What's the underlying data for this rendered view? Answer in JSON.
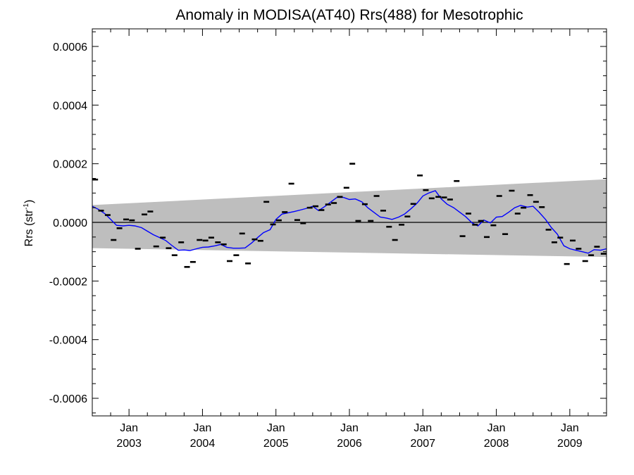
{
  "chart_data": {
    "type": "line",
    "title": "Anomaly in MODISA(AT40) Rrs(488) for Mesotrophic",
    "ylabel": {
      "base": "Rrs (str",
      "sup": "-1",
      "close": ")"
    },
    "xlabel": "",
    "ylim": [
      -0.00066,
      0.00066
    ],
    "xlim": [
      2002.5,
      2009.5
    ],
    "yticks": [
      {
        "value": 0.0006,
        "label": "0.0006"
      },
      {
        "value": 0.0004,
        "label": "0.0004"
      },
      {
        "value": 0.0002,
        "label": "0.0002"
      },
      {
        "value": 0.0,
        "label": "0.0000"
      },
      {
        "value": -0.0002,
        "label": "-0.0002"
      },
      {
        "value": -0.0004,
        "label": "-0.0004"
      },
      {
        "value": -0.0006,
        "label": "-0.0006"
      }
    ],
    "xticks": [
      {
        "value": 2003.0,
        "label": "Jan",
        "year": "2003"
      },
      {
        "value": 2004.0,
        "label": "Jan",
        "year": "2004"
      },
      {
        "value": 2005.0,
        "label": "Jan",
        "year": "2005"
      },
      {
        "value": 2006.0,
        "label": "Jan",
        "year": "2006"
      },
      {
        "value": 2007.0,
        "label": "Jan",
        "year": "2007"
      },
      {
        "value": 2008.0,
        "label": "Jan",
        "year": "2008"
      },
      {
        "value": 2009.0,
        "label": "Jan",
        "year": "2009"
      }
    ],
    "band": {
      "color": "#bebebe",
      "upper": [
        [
          2002.5,
          5.9e-05
        ],
        [
          2009.5,
          0.000147
        ]
      ],
      "lower": [
        [
          2002.5,
          -8.8e-05
        ],
        [
          2009.5,
          -0.000118
        ]
      ]
    },
    "zero_line_color": "#000000",
    "series": [
      {
        "style": "dash-markers",
        "color": "#000000",
        "points": [
          [
            2002.54,
            0.000146
          ],
          [
            2002.62,
            4e-05
          ],
          [
            2002.71,
            2.5e-05
          ],
          [
            2002.79,
            -6e-05
          ],
          [
            2002.87,
            -2e-05
          ],
          [
            2002.96,
            1e-05
          ],
          [
            2003.04,
            7e-06
          ],
          [
            2003.12,
            -9e-05
          ],
          [
            2003.21,
            2.7e-05
          ],
          [
            2003.29,
            3.7e-05
          ],
          [
            2003.37,
            -8.2e-05
          ],
          [
            2003.46,
            -5.2e-05
          ],
          [
            2003.54,
            -8.8e-05
          ],
          [
            2003.62,
            -0.000112
          ],
          [
            2003.71,
            -6.8e-05
          ],
          [
            2003.79,
            -0.000152
          ],
          [
            2003.87,
            -0.000135
          ],
          [
            2003.96,
            -6e-05
          ],
          [
            2004.04,
            -6.2e-05
          ],
          [
            2004.12,
            -5.2e-05
          ],
          [
            2004.21,
            -6.8e-05
          ],
          [
            2004.29,
            -7.5e-05
          ],
          [
            2004.37,
            -0.000132
          ],
          [
            2004.46,
            -0.000112
          ],
          [
            2004.54,
            -3.8e-05
          ],
          [
            2004.62,
            -0.00014
          ],
          [
            2004.71,
            -5.8e-05
          ],
          [
            2004.79,
            -6.3e-05
          ],
          [
            2004.87,
            7e-05
          ],
          [
            2004.96,
            -7e-06
          ],
          [
            2005.04,
            7e-06
          ],
          [
            2005.12,
            3.5e-05
          ],
          [
            2005.21,
            0.000132
          ],
          [
            2005.29,
            8e-06
          ],
          [
            2005.37,
            -3e-06
          ],
          [
            2005.46,
            5e-05
          ],
          [
            2005.54,
            5.5e-05
          ],
          [
            2005.62,
            4.2e-05
          ],
          [
            2005.71,
            6.1e-05
          ],
          [
            2005.79,
            6.6e-05
          ],
          [
            2005.87,
            8.7e-05
          ],
          [
            2005.96,
            0.000118
          ],
          [
            2006.04,
            0.0002
          ],
          [
            2006.12,
            5e-06
          ],
          [
            2006.21,
            6.2e-05
          ],
          [
            2006.29,
            5e-06
          ],
          [
            2006.37,
            9e-05
          ],
          [
            2006.46,
            4e-05
          ],
          [
            2006.54,
            -1.5e-05
          ],
          [
            2006.62,
            -6e-05
          ],
          [
            2006.71,
            -8e-06
          ],
          [
            2006.79,
            2e-05
          ],
          [
            2006.87,
            6.3e-05
          ],
          [
            2006.96,
            0.00016
          ],
          [
            2007.04,
            0.00011
          ],
          [
            2007.12,
            8.2e-05
          ],
          [
            2007.21,
            8.7e-05
          ],
          [
            2007.29,
            8.5e-05
          ],
          [
            2007.37,
            7.8e-05
          ],
          [
            2007.46,
            0.000141
          ],
          [
            2007.54,
            -4.7e-05
          ],
          [
            2007.62,
            3e-05
          ],
          [
            2007.71,
            -8e-06
          ],
          [
            2007.79,
            5e-06
          ],
          [
            2007.87,
            -5e-05
          ],
          [
            2007.96,
            -1e-05
          ],
          [
            2008.04,
            9e-05
          ],
          [
            2008.12,
            -4e-05
          ],
          [
            2008.21,
            0.000108
          ],
          [
            2008.29,
            3e-05
          ],
          [
            2008.37,
            5e-05
          ],
          [
            2008.46,
            9.3e-05
          ],
          [
            2008.54,
            7e-05
          ],
          [
            2008.62,
            5.2e-05
          ],
          [
            2008.71,
            -2.5e-05
          ],
          [
            2008.79,
            -6.8e-05
          ],
          [
            2008.87,
            -5.2e-05
          ],
          [
            2008.96,
            -0.000142
          ],
          [
            2009.04,
            -6.2e-05
          ],
          [
            2009.12,
            -9e-05
          ],
          [
            2009.21,
            -0.000132
          ],
          [
            2009.29,
            -0.000112
          ],
          [
            2009.37,
            -8.3e-05
          ],
          [
            2009.46,
            -0.000107
          ]
        ]
      },
      {
        "style": "line",
        "color": "#0000ff",
        "points": [
          [
            2002.5,
            5.5e-05
          ],
          [
            2002.58,
            4.5e-05
          ],
          [
            2002.67,
            3e-05
          ],
          [
            2002.75,
            1e-05
          ],
          [
            2002.83,
            -1e-05
          ],
          [
            2002.92,
            -1.2e-05
          ],
          [
            2003.0,
            -1e-05
          ],
          [
            2003.08,
            -1.2e-05
          ],
          [
            2003.17,
            -1.8e-05
          ],
          [
            2003.25,
            -3e-05
          ],
          [
            2003.33,
            -4.2e-05
          ],
          [
            2003.42,
            -5.2e-05
          ],
          [
            2003.5,
            -6.2e-05
          ],
          [
            2003.58,
            -7.8e-05
          ],
          [
            2003.67,
            -9.5e-05
          ],
          [
            2003.75,
            -9.4e-05
          ],
          [
            2003.83,
            -9.6e-05
          ],
          [
            2003.92,
            -9e-05
          ],
          [
            2004.0,
            -8.5e-05
          ],
          [
            2004.08,
            -8.4e-05
          ],
          [
            2004.17,
            -8e-05
          ],
          [
            2004.25,
            -7.5e-05
          ],
          [
            2004.33,
            -8.5e-05
          ],
          [
            2004.42,
            -8.8e-05
          ],
          [
            2004.5,
            -8.8e-05
          ],
          [
            2004.58,
            -8.7e-05
          ],
          [
            2004.67,
            -7e-05
          ],
          [
            2004.75,
            -5.2e-05
          ],
          [
            2004.83,
            -3.5e-05
          ],
          [
            2004.92,
            -2.5e-05
          ],
          [
            2005.0,
            1e-05
          ],
          [
            2005.08,
            2.8e-05
          ],
          [
            2005.17,
            3.3e-05
          ],
          [
            2005.25,
            3.7e-05
          ],
          [
            2005.33,
            4.2e-05
          ],
          [
            2005.42,
            4.8e-05
          ],
          [
            2005.5,
            5.5e-05
          ],
          [
            2005.58,
            4e-05
          ],
          [
            2005.67,
            5.5e-05
          ],
          [
            2005.75,
            7e-05
          ],
          [
            2005.83,
            8.5e-05
          ],
          [
            2005.92,
            8.5e-05
          ],
          [
            2006.0,
            7.8e-05
          ],
          [
            2006.08,
            8e-05
          ],
          [
            2006.17,
            7e-05
          ],
          [
            2006.25,
            5e-05
          ],
          [
            2006.33,
            3.5e-05
          ],
          [
            2006.42,
            1.8e-05
          ],
          [
            2006.5,
            1.5e-05
          ],
          [
            2006.58,
            1e-05
          ],
          [
            2006.67,
            1.8e-05
          ],
          [
            2006.75,
            2.8e-05
          ],
          [
            2006.83,
            4.5e-05
          ],
          [
            2006.92,
            6.5e-05
          ],
          [
            2007.0,
            9e-05
          ],
          [
            2007.08,
            0.0001
          ],
          [
            2007.17,
            0.000108
          ],
          [
            2007.25,
            8e-05
          ],
          [
            2007.33,
            6.2e-05
          ],
          [
            2007.42,
            5e-05
          ],
          [
            2007.5,
            3.5e-05
          ],
          [
            2007.58,
            2e-05
          ],
          [
            2007.67,
            -2e-06
          ],
          [
            2007.75,
            -1.2e-05
          ],
          [
            2007.83,
            8e-06
          ],
          [
            2007.92,
            -2e-06
          ],
          [
            2008.0,
            1.8e-05
          ],
          [
            2008.08,
            2e-05
          ],
          [
            2008.17,
            3.5e-05
          ],
          [
            2008.25,
            5e-05
          ],
          [
            2008.33,
            5.8e-05
          ],
          [
            2008.42,
            5.2e-05
          ],
          [
            2008.5,
            5.5e-05
          ],
          [
            2008.58,
            3.5e-05
          ],
          [
            2008.67,
            1e-05
          ],
          [
            2008.75,
            -1.8e-05
          ],
          [
            2008.83,
            -4e-05
          ],
          [
            2008.92,
            -8e-05
          ],
          [
            2009.0,
            -9e-05
          ],
          [
            2009.08,
            -9.5e-05
          ],
          [
            2009.17,
            -0.0001
          ],
          [
            2009.25,
            -0.000105
          ],
          [
            2009.33,
            -9.3e-05
          ],
          [
            2009.42,
            -9.5e-05
          ],
          [
            2009.5,
            -9e-05
          ]
        ]
      }
    ],
    "grid": false,
    "legend": "none"
  }
}
